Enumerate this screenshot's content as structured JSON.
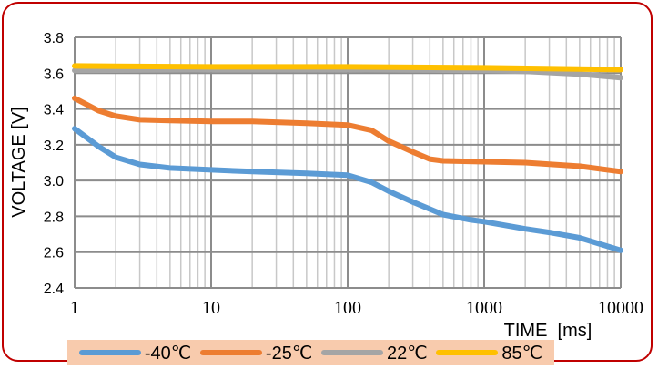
{
  "chart_data": {
    "type": "line",
    "xscale": "log",
    "xlim": [
      1,
      10000
    ],
    "ylim": [
      2.4,
      3.8
    ],
    "xlabel": "TIME  [ms]",
    "ylabel": "VOLTAGE  [V]",
    "grid": true,
    "legend_position": "bottom",
    "x_ticks": [
      "1",
      "10",
      "100",
      "1000",
      "10000"
    ],
    "y_ticks": [
      "2.4",
      "2.6",
      "2.8",
      "3.0",
      "3.2",
      "3.4",
      "3.6",
      "3.8"
    ],
    "series": [
      {
        "name": "-40℃",
        "color": "#5b9bd5",
        "x": [
          1,
          1.5,
          2,
          3,
          5,
          10,
          20,
          50,
          100,
          150,
          200,
          300,
          500,
          800,
          1000,
          2000,
          3000,
          5000,
          10000
        ],
        "y": [
          3.29,
          3.19,
          3.13,
          3.09,
          3.07,
          3.06,
          3.05,
          3.04,
          3.03,
          2.99,
          2.94,
          2.88,
          2.81,
          2.78,
          2.77,
          2.73,
          2.71,
          2.68,
          2.61
        ]
      },
      {
        "name": "-25℃",
        "color": "#ed7d31",
        "x": [
          1,
          1.5,
          2,
          3,
          5,
          10,
          20,
          50,
          100,
          150,
          200,
          300,
          400,
          500,
          1000,
          2000,
          5000,
          10000
        ],
        "y": [
          3.46,
          3.39,
          3.36,
          3.34,
          3.335,
          3.33,
          3.33,
          3.32,
          3.31,
          3.28,
          3.22,
          3.16,
          3.12,
          3.11,
          3.105,
          3.1,
          3.08,
          3.05
        ]
      },
      {
        "name": "22℃",
        "color": "#a5a5a5",
        "x": [
          1,
          10,
          100,
          1000,
          2000,
          5000,
          10000
        ],
        "y": [
          3.615,
          3.62,
          3.62,
          3.615,
          3.61,
          3.595,
          3.575
        ]
      },
      {
        "name": "85℃",
        "color": "#ffc000",
        "x": [
          1,
          10,
          100,
          1000,
          10000
        ],
        "y": [
          3.64,
          3.635,
          3.635,
          3.63,
          3.62
        ]
      }
    ]
  }
}
